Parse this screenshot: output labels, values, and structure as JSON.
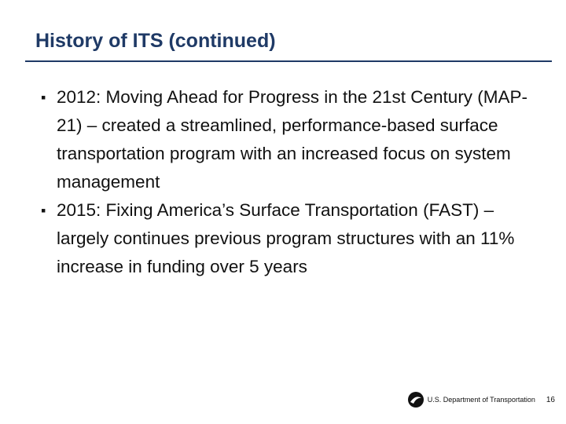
{
  "header": {
    "title": "History of ITS (continued)"
  },
  "bullets": [
    "2012: Moving Ahead for Progress in the 21st Century (MAP-21) – created a streamlined, performance-based surface transportation program with an increased focus on system management",
    "2015: Fixing America’s Surface Transportation (FAST) – largely continues previous program structures with an 11% increase in funding over 5 years"
  ],
  "footer": {
    "organization": "U.S. Department of Transportation",
    "page": "16"
  }
}
